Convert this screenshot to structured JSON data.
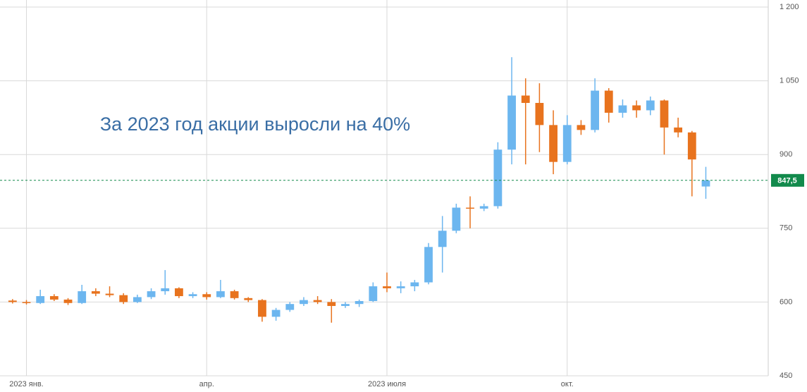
{
  "chart_data": {
    "type": "candlestick",
    "annotation": "За 2023 год акции выросли на 40%",
    "categories": [
      null,
      "2023 янв.",
      null,
      null,
      null,
      null,
      null,
      null,
      null,
      null,
      null,
      null,
      null,
      null,
      "апр.",
      null,
      null,
      null,
      null,
      null,
      null,
      null,
      null,
      null,
      null,
      null,
      null,
      "2023 июля",
      null,
      null,
      null,
      null,
      null,
      null,
      null,
      null,
      null,
      null,
      null,
      null,
      "окт.",
      null,
      null,
      null,
      null,
      null,
      null,
      null,
      null,
      null,
      null
    ],
    "open": [
      603,
      600,
      598,
      612,
      605,
      598,
      622,
      617,
      614,
      600,
      610,
      622,
      628,
      612,
      616,
      610,
      622,
      608,
      604,
      570,
      584,
      596,
      604,
      600,
      592,
      596,
      602,
      632,
      628,
      632,
      640,
      712,
      745,
      792,
      790,
      795,
      910,
      1020,
      1005,
      960,
      885,
      960,
      950,
      1030,
      985,
      1000,
      990,
      1010,
      955,
      945,
      835
    ],
    "high": [
      606,
      604,
      625,
      616,
      608,
      635,
      628,
      632,
      618,
      615,
      628,
      665,
      630,
      620,
      620,
      645,
      625,
      610,
      606,
      588,
      600,
      610,
      612,
      606,
      600,
      605,
      640,
      660,
      642,
      645,
      720,
      775,
      800,
      815,
      800,
      925,
      1098,
      1055,
      1045,
      990,
      980,
      970,
      1055,
      1035,
      1012,
      1010,
      1018,
      1012,
      975,
      948,
      875
    ],
    "low": [
      597,
      595,
      596,
      602,
      594,
      596,
      612,
      610,
      596,
      598,
      606,
      615,
      608,
      608,
      605,
      608,
      605,
      600,
      560,
      562,
      580,
      592,
      596,
      558,
      588,
      590,
      600,
      620,
      618,
      622,
      636,
      660,
      740,
      750,
      785,
      790,
      880,
      880,
      905,
      860,
      880,
      940,
      945,
      965,
      975,
      975,
      980,
      900,
      935,
      815,
      810
    ],
    "close": [
      600,
      598,
      612,
      605,
      598,
      622,
      617,
      614,
      600,
      610,
      622,
      628,
      612,
      616,
      610,
      622,
      608,
      604,
      570,
      584,
      596,
      604,
      600,
      592,
      596,
      602,
      632,
      628,
      632,
      640,
      712,
      745,
      792,
      790,
      795,
      910,
      1020,
      1005,
      960,
      885,
      960,
      950,
      1030,
      985,
      1000,
      990,
      1010,
      955,
      945,
      890,
      847.5
    ],
    "up_color": "#6cb6ef",
    "down_color": "#e8731e",
    "ylim": [
      450,
      1200
    ],
    "yticks": [
      450,
      600,
      750,
      900,
      {
        "value": 1050,
        "label": "1 050"
      },
      {
        "value": 1200,
        "label": "1 200"
      }
    ],
    "grid": true,
    "price_line": {
      "value": 847.5,
      "label": "847,5",
      "color": "#128a4c"
    }
  }
}
